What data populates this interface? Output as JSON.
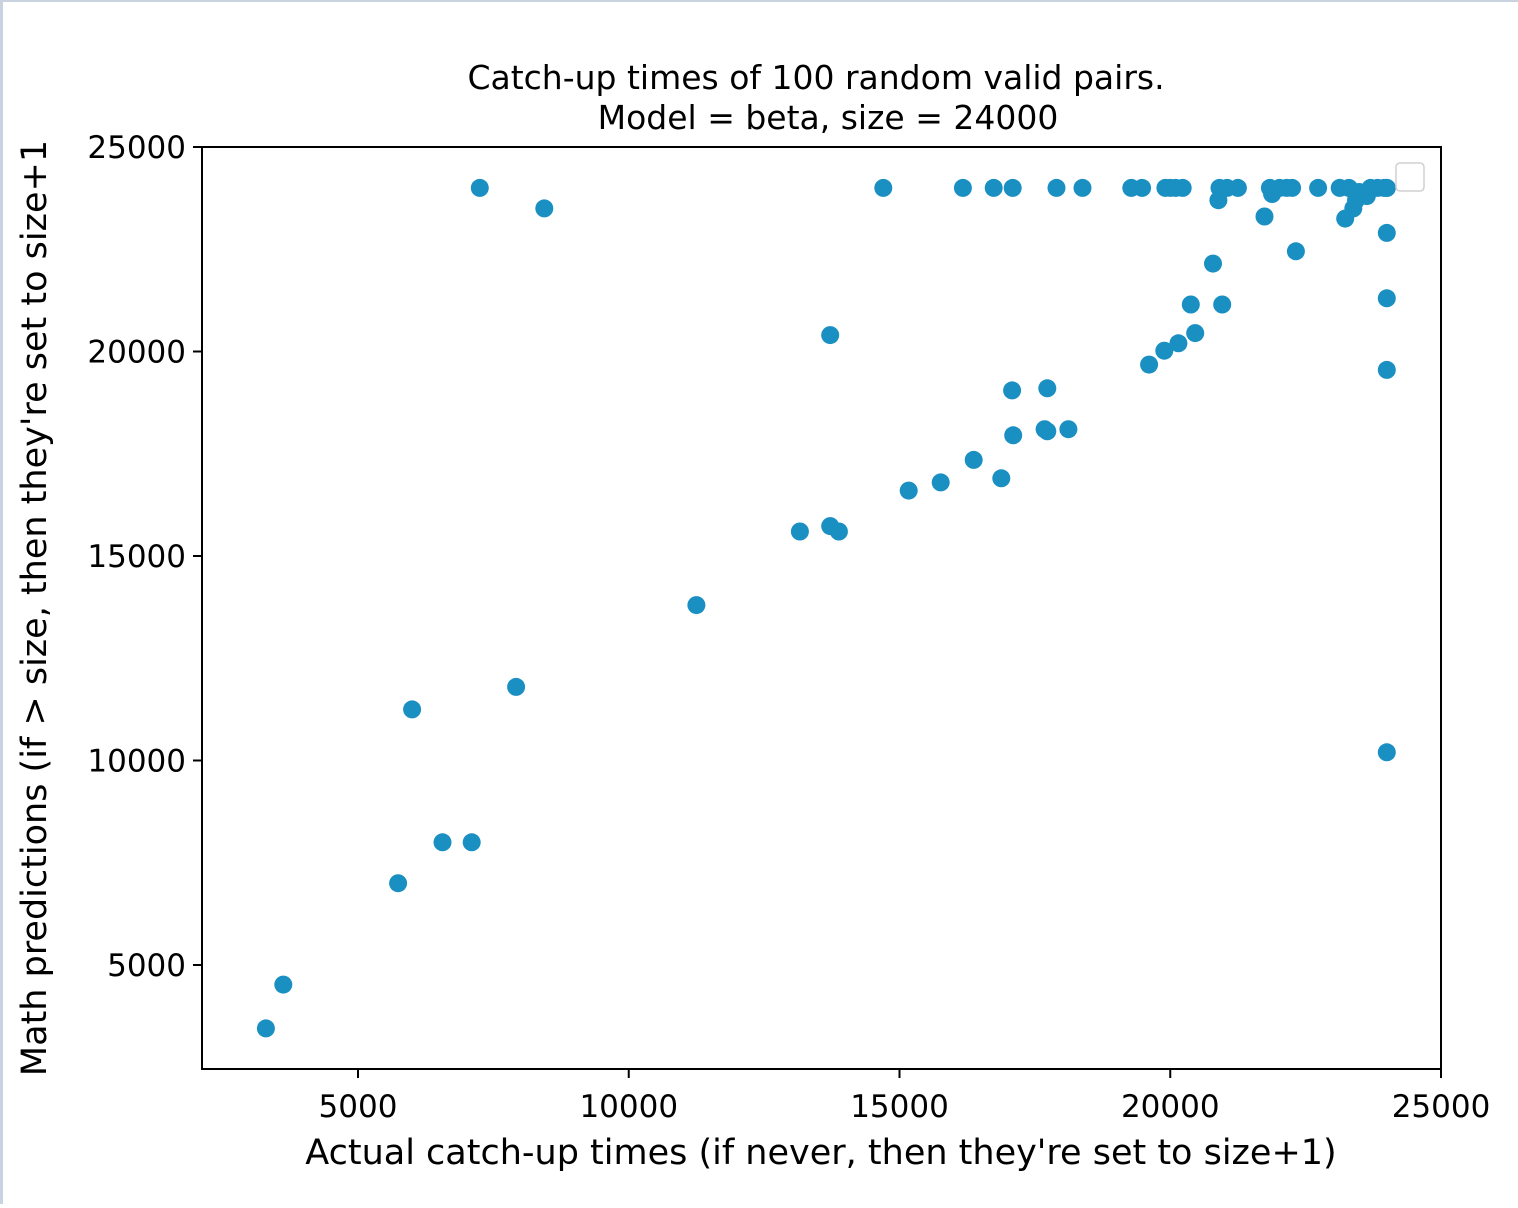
{
  "colors": {
    "point": "#1a8fc2",
    "axis": "#000000",
    "background": "#ffffff"
  },
  "chart_data": {
    "type": "scatter",
    "title": "Catch-up times of 100 random valid pairs.",
    "subtitle": "Model = beta, size = 24000",
    "xlabel": "Actual catch-up times (if never, then they're set to size+1)",
    "ylabel": "Math predictions (if > size, then they're set to size+1",
    "xlim": [
      2300,
      25000
    ],
    "ylim": [
      2500,
      25000
    ],
    "xticks": [
      5000,
      10000,
      15000,
      20000,
      25000
    ],
    "yticks": [
      5000,
      10000,
      15000,
      20000,
      25000
    ],
    "xtick_labels": [
      "5000",
      "10000",
      "15000",
      "20000",
      "25000"
    ],
    "ytick_labels": [
      "5000",
      "10000",
      "15000",
      "20000",
      "25000"
    ],
    "grid": false,
    "legend": "top-right (empty)",
    "series": [
      {
        "points": [
          [
            3300,
            3450
          ],
          [
            3620,
            4520
          ],
          [
            5740,
            7000
          ],
          [
            6000,
            11250
          ],
          [
            6560,
            8000
          ],
          [
            7100,
            8000
          ],
          [
            7250,
            24000
          ],
          [
            7920,
            11800
          ],
          [
            8440,
            23500
          ],
          [
            11250,
            13800
          ],
          [
            13160,
            15600
          ],
          [
            13720,
            20400
          ],
          [
            13720,
            15730
          ],
          [
            13880,
            15600
          ],
          [
            14700,
            24000
          ],
          [
            15170,
            16600
          ],
          [
            15760,
            16800
          ],
          [
            16170,
            24000
          ],
          [
            16370,
            17350
          ],
          [
            16740,
            24000
          ],
          [
            16880,
            16900
          ],
          [
            17080,
            19050
          ],
          [
            17100,
            17950
          ],
          [
            17090,
            24000
          ],
          [
            17680,
            18100
          ],
          [
            17730,
            18050
          ],
          [
            17730,
            19100
          ],
          [
            17900,
            24000
          ],
          [
            18120,
            18100
          ],
          [
            18380,
            24000
          ],
          [
            19280,
            24000
          ],
          [
            19480,
            24000
          ],
          [
            19610,
            19680
          ],
          [
            19890,
            20020
          ],
          [
            19910,
            24000
          ],
          [
            20000,
            24000
          ],
          [
            20100,
            24000
          ],
          [
            20150,
            20200
          ],
          [
            20230,
            24000
          ],
          [
            20380,
            21150
          ],
          [
            20460,
            20450
          ],
          [
            20790,
            22150
          ],
          [
            20890,
            23700
          ],
          [
            20910,
            24000
          ],
          [
            20960,
            21150
          ],
          [
            21050,
            24000
          ],
          [
            21250,
            24000
          ],
          [
            21740,
            23300
          ],
          [
            21840,
            24000
          ],
          [
            21880,
            23850
          ],
          [
            22020,
            24000
          ],
          [
            22150,
            24000
          ],
          [
            22250,
            24000
          ],
          [
            22320,
            22450
          ],
          [
            22730,
            24000
          ],
          [
            23130,
            24000
          ],
          [
            23230,
            23250
          ],
          [
            23300,
            24000
          ],
          [
            23380,
            23500
          ],
          [
            23430,
            23700
          ],
          [
            23490,
            23900
          ],
          [
            23630,
            23800
          ],
          [
            23700,
            24000
          ],
          [
            23830,
            24000
          ],
          [
            23950,
            24000
          ],
          [
            24000,
            22900
          ],
          [
            24000,
            21300
          ],
          [
            24000,
            19550
          ],
          [
            24000,
            10200
          ],
          [
            24000,
            24000
          ],
          [
            24000,
            24000
          ]
        ]
      }
    ]
  }
}
